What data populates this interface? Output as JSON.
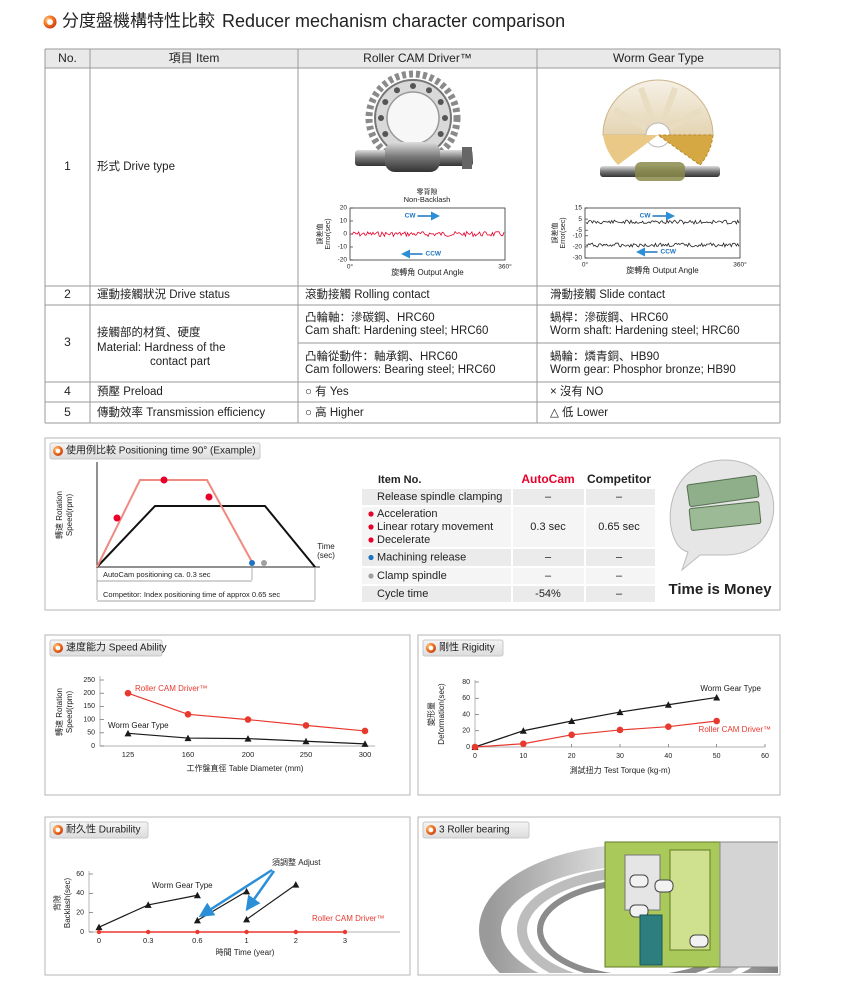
{
  "header": {
    "title": "分度盤機構特性比較",
    "title_en": "Reducer mechanism character comparison"
  },
  "comparison": {
    "columns": [
      "No.",
      "項目 Item",
      "Roller CAM Driver™",
      "Worm Gear Type"
    ],
    "rows": [
      {
        "no": "1",
        "item": "形式 Drive type"
      },
      {
        "no": "2",
        "item": "運動接觸狀況 Drive status",
        "roller": "滾動接觸 Rolling contact",
        "worm": "滑動接觸 Slide contact"
      },
      {
        "no": "3",
        "item": [
          "接觸部的材質、硬度",
          "Material: Hardness of the",
          "contact part"
        ],
        "roller": [
          [
            "凸輪軸：滲碳鋼、HRC60",
            "Cam shaft: Hardening steel; HRC60"
          ],
          [
            "凸輪從動件：軸承鋼、HRC60",
            "Cam followers: Bearing steel; HRC60"
          ]
        ],
        "worm": [
          [
            "蝸桿：滲碳鋼、HRC60",
            "Worm shaft: Hardening steel; HRC60"
          ],
          [
            "蝸輪：燐青銅、HB90",
            "Worm gear: Phosphor bronze; HB90"
          ]
        ]
      },
      {
        "no": "4",
        "item": "預壓 Preload",
        "roller": "○ 有 Yes",
        "worm": "× 沒有 NO"
      },
      {
        "no": "5",
        "item": "傳動效率 Transmission efficiency",
        "roller": "○ 高 Higher",
        "worm": "△ 低 Lower"
      }
    ],
    "roller_error_chart": {
      "label": "零背隙",
      "label_en": "Non-Backlash",
      "y_label": [
        "誤差值",
        "Error(sec)"
      ],
      "x_label": "旋轉角 Output Angle",
      "ylim": [
        -20,
        20
      ],
      "yticks": [
        20,
        10,
        0,
        -10,
        -20
      ],
      "xticks": [
        "0°",
        "360°"
      ],
      "cw": "CW",
      "ccw": "CCW"
    },
    "worm_error_chart": {
      "y_label": [
        "誤差值",
        "Error(sec)"
      ],
      "x_label": "旋轉角 Output Angle",
      "ylim": [
        -30,
        15
      ],
      "yticks": [
        15,
        5,
        -5,
        -10,
        -20,
        -30
      ],
      "xticks": [
        "0°",
        "360°"
      ],
      "cw": "CW",
      "ccw": "CCW"
    }
  },
  "positioning": {
    "title": "使用例比較  Positioning time 90° (Example)",
    "y_label": [
      "轉速 Rotation",
      "Speed(rpm)"
    ],
    "x_label": [
      "Time",
      "(sec)"
    ],
    "autocam_note": "AutoCam positioning ca. 0.3 sec",
    "competitor_note": "Competitor: Index positioning time of approx 0.65 sec",
    "table": {
      "headers": [
        "Item No.",
        "AutoCam",
        "Competitor"
      ],
      "rows": [
        {
          "item": "Release spindle clamping",
          "autocam": "–",
          "competitor": "–"
        },
        {
          "item": [
            "Acceleration",
            "Linear rotary movement",
            "Decelerate"
          ],
          "autocam": "0.3 sec",
          "competitor": "0.65 sec"
        },
        {
          "item": "Machining release",
          "autocam": "–",
          "competitor": "–"
        },
        {
          "item": "Clamp spindle",
          "autocam": "–",
          "competitor": "–"
        },
        {
          "item": "Cycle time",
          "autocam": "-54%",
          "competitor": "–"
        }
      ]
    },
    "slogan": "Time is Money"
  },
  "speed": {
    "type": "line",
    "title": "速度能力 Speed Ability",
    "y_label": [
      "轉速 Rotation",
      "Speed(rpm)"
    ],
    "x_label": "工作盤直徑 Table Diameter (mm)",
    "categories": [
      "125",
      "160",
      "200",
      "250",
      "300"
    ],
    "ylim": [
      0,
      250
    ],
    "yticks": [
      0,
      50,
      100,
      150,
      200,
      250
    ],
    "series": [
      {
        "name": "Roller CAM Driver™",
        "color": "#e8392f",
        "values": [
          200,
          120,
          100,
          78,
          57
        ]
      },
      {
        "name": "Worm Gear Type",
        "color": "#1a1a1a",
        "values": [
          48,
          30,
          28,
          18,
          8
        ]
      }
    ]
  },
  "rigidity": {
    "type": "line",
    "title": "剛性 Rigidity",
    "y_label": [
      "變形量",
      "Deformation(sec)"
    ],
    "x_label": "測試扭力 Test Torque (kg-m)",
    "xlim": [
      0,
      60
    ],
    "xticks": [
      0,
      10,
      20,
      30,
      40,
      50,
      60
    ],
    "ylim": [
      0,
      80
    ],
    "yticks": [
      0,
      20,
      40,
      60,
      80
    ],
    "series": [
      {
        "name": "Worm Gear Type",
        "color": "#1a1a1a",
        "x": [
          0,
          10,
          20,
          30,
          40,
          50
        ],
        "values": [
          0,
          20,
          32,
          43,
          52,
          61
        ]
      },
      {
        "name": "Roller CAM Driver™",
        "color": "#e8392f",
        "x": [
          0,
          10,
          20,
          30,
          40,
          50
        ],
        "values": [
          0,
          4,
          15,
          21,
          25,
          32
        ]
      }
    ]
  },
  "durability": {
    "type": "line",
    "title": "耐久性  Durability",
    "y_label": [
      "背隙",
      "Backlash(sec)"
    ],
    "x_label": "時間 Time (year)",
    "categories": [
      "0",
      "0.3",
      "0.6",
      "1",
      "2",
      "3"
    ],
    "ylim": [
      0,
      60
    ],
    "yticks": [
      0,
      20,
      40,
      60
    ],
    "annotation": "須調整  Adjust",
    "series": [
      {
        "name": "Worm Gear Type",
        "color": "#1a1a1a",
        "segments": [
          [
            {
              "x": "0",
              "y": 5
            },
            {
              "x": "0.3",
              "y": 28
            },
            {
              "x": "0.6",
              "y": 38
            }
          ],
          [
            {
              "x": "0.6",
              "y": 12
            },
            {
              "x": "1",
              "y": 42
            }
          ],
          [
            {
              "x": "1",
              "y": 13
            },
            {
              "x": "2",
              "y": 49
            }
          ]
        ]
      },
      {
        "name": "Roller CAM Driver™",
        "color": "#e8392f",
        "values": [
          0,
          0,
          0,
          0,
          0,
          0
        ]
      }
    ]
  },
  "bearing": {
    "title": "3 Roller bearing"
  }
}
